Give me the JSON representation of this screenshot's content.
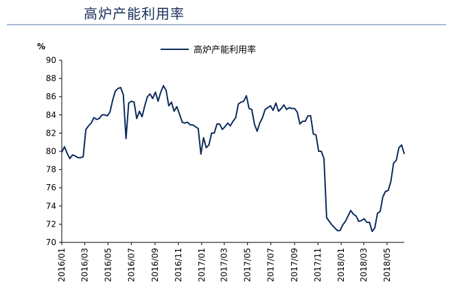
{
  "header": {
    "title": "高炉产能利用率"
  },
  "chart_data": {
    "type": "line",
    "title": "高炉产能利用率",
    "ylabel": "%",
    "xlabel": "",
    "ylim": [
      70,
      90
    ],
    "yticks": [
      70,
      72,
      74,
      76,
      78,
      80,
      82,
      84,
      86,
      88,
      90
    ],
    "xticks": [
      "2016/01",
      "2016/03",
      "2016/05",
      "2016/07",
      "2016/09",
      "2016/11",
      "2017/01",
      "2017/03",
      "2017/05",
      "2017/07",
      "2017/09",
      "2017/11",
      "2018/01",
      "2018/03",
      "2018/05"
    ],
    "grid": false,
    "legend": "top-center",
    "series": [
      {
        "name": "高炉产能利用率",
        "color": "#0b2a5b",
        "x": [
          "2016/01/01",
          "2016/01/08",
          "2016/01/15",
          "2016/01/22",
          "2016/01/29",
          "2016/02/05",
          "2016/02/12",
          "2016/02/19",
          "2016/02/26",
          "2016/03/04",
          "2016/03/11",
          "2016/03/18",
          "2016/03/25",
          "2016/04/01",
          "2016/04/08",
          "2016/04/15",
          "2016/04/22",
          "2016/04/29",
          "2016/05/06",
          "2016/05/13",
          "2016/05/20",
          "2016/05/27",
          "2016/06/03",
          "2016/06/10",
          "2016/06/17",
          "2016/06/24",
          "2016/07/01",
          "2016/07/08",
          "2016/07/15",
          "2016/07/22",
          "2016/07/29",
          "2016/08/05",
          "2016/08/12",
          "2016/08/19",
          "2016/08/26",
          "2016/09/02",
          "2016/09/09",
          "2016/09/16",
          "2016/09/23",
          "2016/09/30",
          "2016/10/07",
          "2016/10/14",
          "2016/10/21",
          "2016/10/28",
          "2016/11/04",
          "2016/11/11",
          "2016/11/18",
          "2016/11/25",
          "2016/12/02",
          "2016/12/09",
          "2016/12/16",
          "2016/12/23",
          "2016/12/30",
          "2017/01/06",
          "2017/01/13",
          "2017/01/20",
          "2017/01/27",
          "2017/02/03",
          "2017/02/10",
          "2017/02/17",
          "2017/02/24",
          "2017/03/03",
          "2017/03/10",
          "2017/03/17",
          "2017/03/24",
          "2017/03/31",
          "2017/04/07",
          "2017/04/14",
          "2017/04/21",
          "2017/04/28",
          "2017/05/05",
          "2017/05/12",
          "2017/05/19",
          "2017/05/26",
          "2017/06/02",
          "2017/06/09",
          "2017/06/16",
          "2017/06/23",
          "2017/06/30",
          "2017/07/07",
          "2017/07/14",
          "2017/07/21",
          "2017/07/28",
          "2017/08/04",
          "2017/08/11",
          "2017/08/18",
          "2017/08/25",
          "2017/09/01",
          "2017/09/08",
          "2017/09/15",
          "2017/09/22",
          "2017/09/29",
          "2017/10/06",
          "2017/10/13",
          "2017/10/20",
          "2017/10/27",
          "2017/11/03",
          "2017/11/10",
          "2017/11/17",
          "2017/11/24",
          "2017/12/01",
          "2017/12/08",
          "2017/12/15",
          "2017/12/22",
          "2017/12/29",
          "2018/01/05",
          "2018/01/12",
          "2018/01/19",
          "2018/01/26",
          "2018/02/02",
          "2018/02/09",
          "2018/02/16",
          "2018/02/23",
          "2018/03/02",
          "2018/03/09",
          "2018/03/16",
          "2018/03/23",
          "2018/03/30",
          "2018/04/06",
          "2018/04/13",
          "2018/04/20",
          "2018/04/27",
          "2018/05/04",
          "2018/05/11",
          "2018/05/18",
          "2018/05/25",
          "2018/06/01",
          "2018/06/08",
          "2018/06/15"
        ],
        "values": [
          79.9,
          80.5,
          79.8,
          79.2,
          79.6,
          79.5,
          79.3,
          79.3,
          79.4,
          82.4,
          82.8,
          83.1,
          83.7,
          83.5,
          83.6,
          84.0,
          84.0,
          83.9,
          84.3,
          85.6,
          86.6,
          86.9,
          87.0,
          86.2,
          81.4,
          85.3,
          85.5,
          85.4,
          83.6,
          84.4,
          83.8,
          85.0,
          86.0,
          86.3,
          85.8,
          86.5,
          85.5,
          86.5,
          87.2,
          86.7,
          85.0,
          85.4,
          84.4,
          84.9,
          84.1,
          83.2,
          83.1,
          83.2,
          82.9,
          82.9,
          82.7,
          82.5,
          79.7,
          81.5,
          80.4,
          80.7,
          82.0,
          82.0,
          83.0,
          83.0,
          82.4,
          82.7,
          83.1,
          82.8,
          83.3,
          83.7,
          85.2,
          85.4,
          85.5,
          86.1,
          84.7,
          84.6,
          83.0,
          82.2,
          83.1,
          83.7,
          84.6,
          84.8,
          85.0,
          84.5,
          85.3,
          84.4,
          84.7,
          85.1,
          84.6,
          84.8,
          84.7,
          84.7,
          84.3,
          83.0,
          83.3,
          83.3,
          83.9,
          83.9,
          81.9,
          81.8,
          80.0,
          80.0,
          79.2,
          72.7,
          72.3,
          71.9,
          71.6,
          71.3,
          71.3,
          71.9,
          72.3,
          72.9,
          73.5,
          73.1,
          72.9,
          72.3,
          72.4,
          72.6,
          72.2,
          72.2,
          71.2,
          71.6,
          73.2,
          73.4,
          75.0,
          75.6,
          75.7,
          76.7,
          78.7,
          79.0,
          80.4,
          80.7,
          79.7
        ]
      }
    ]
  }
}
